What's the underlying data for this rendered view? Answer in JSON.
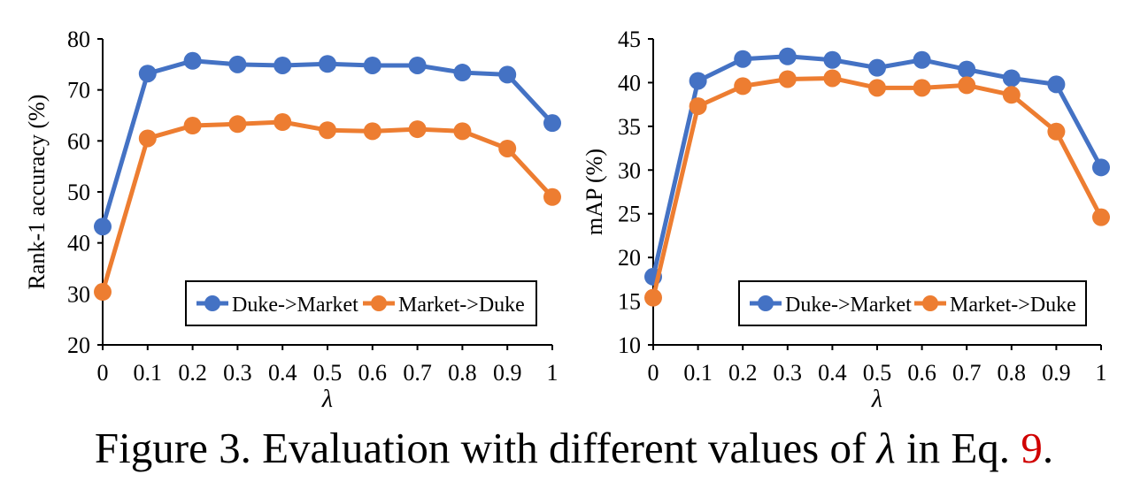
{
  "caption": {
    "prefix": "Figure 3. Evaluation with different values of ",
    "symbol": "λ",
    "middle": " in Eq. ",
    "ref": "9",
    "suffix": "."
  },
  "colors": {
    "duke_market": "#4472C4",
    "market_duke": "#ED7D31"
  },
  "chart_data": [
    {
      "type": "line",
      "xlabel": "λ",
      "ylabel": "Rank-1 accuracy (%)",
      "x": [
        0,
        0.1,
        0.2,
        0.3,
        0.4,
        0.5,
        0.6,
        0.7,
        0.8,
        0.9,
        1
      ],
      "x_ticks": [
        "0",
        "0.1",
        "0.2",
        "0.3",
        "0.4",
        "0.5",
        "0.6",
        "0.7",
        "0.8",
        "0.9",
        "1"
      ],
      "ylim": [
        20,
        80
      ],
      "y_ticks": [
        20,
        30,
        40,
        50,
        60,
        70,
        80
      ],
      "grid": false,
      "legend": "lower-right",
      "series": [
        {
          "name": "Duke->Market",
          "color": "#4472C4",
          "values": [
            43.2,
            73.2,
            75.7,
            75.0,
            74.8,
            75.1,
            74.8,
            74.8,
            73.4,
            73.0,
            63.5
          ]
        },
        {
          "name": "Market->Duke",
          "color": "#ED7D31",
          "values": [
            30.4,
            60.5,
            63.0,
            63.3,
            63.7,
            62.1,
            61.9,
            62.3,
            61.9,
            58.5,
            49.0
          ]
        }
      ]
    },
    {
      "type": "line",
      "xlabel": "λ",
      "ylabel": "mAP (%)",
      "x": [
        0,
        0.1,
        0.2,
        0.3,
        0.4,
        0.5,
        0.6,
        0.7,
        0.8,
        0.9,
        1
      ],
      "x_ticks": [
        "0",
        "0.1",
        "0.2",
        "0.3",
        "0.4",
        "0.5",
        "0.6",
        "0.7",
        "0.8",
        "0.9",
        "1"
      ],
      "ylim": [
        10,
        45
      ],
      "y_ticks": [
        10,
        15,
        20,
        25,
        30,
        35,
        40,
        45
      ],
      "grid": false,
      "legend": "lower-right",
      "series": [
        {
          "name": "Duke->Market",
          "color": "#4472C4",
          "values": [
            17.8,
            40.2,
            42.7,
            43.0,
            42.6,
            41.7,
            42.6,
            41.5,
            40.5,
            39.8,
            30.3
          ]
        },
        {
          "name": "Market->Duke",
          "color": "#ED7D31",
          "values": [
            15.4,
            37.3,
            39.6,
            40.4,
            40.5,
            39.4,
            39.4,
            39.7,
            38.6,
            34.4,
            24.6
          ]
        }
      ]
    }
  ]
}
